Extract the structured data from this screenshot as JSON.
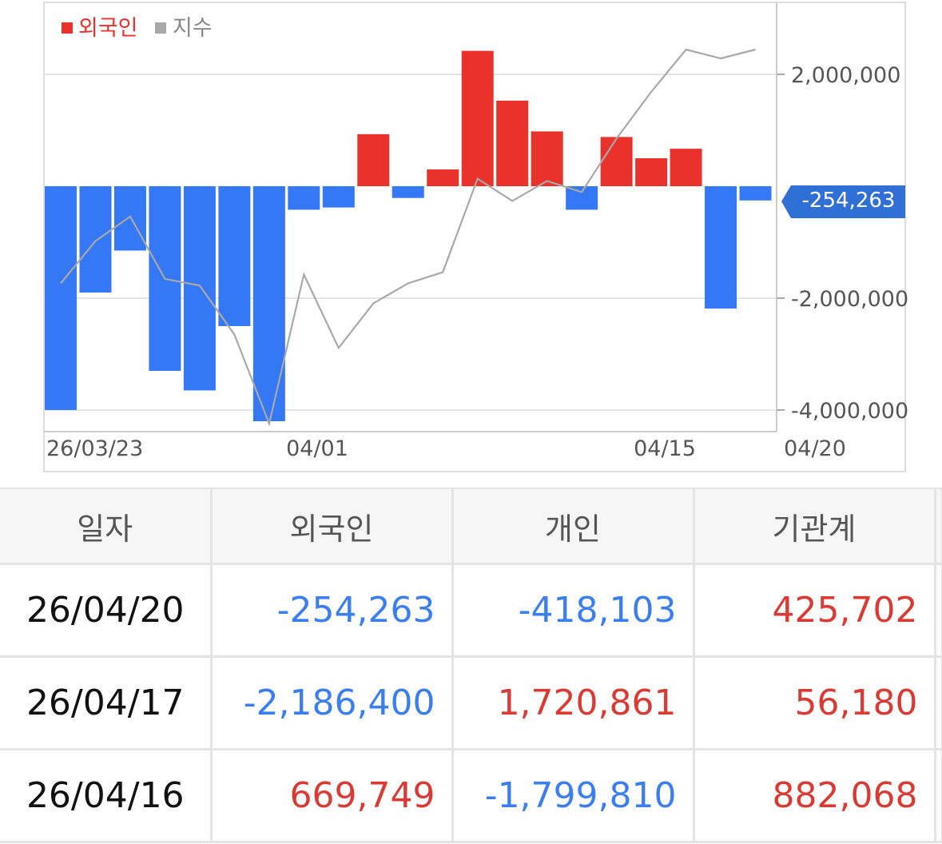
{
  "chart_data": {
    "type": "bar",
    "legend": [
      {
        "label": "외국인",
        "color": "#e8322b"
      },
      {
        "label": "지수",
        "color": "#a8a8a8"
      }
    ],
    "x_labels": [
      "26/03/23",
      "04/01",
      "04/15",
      "04/20"
    ],
    "y_ticks": [
      "2,000,000",
      "-2,000,000",
      "-4,000,000"
    ],
    "y_tick_values": [
      2000000,
      -2000000,
      -4000000
    ],
    "ylim": [
      -4300000,
      3200000
    ],
    "current_value_label": "-254,263",
    "current_value": -254263,
    "series": [
      {
        "name": "외국인",
        "values": [
          -4000000,
          -1900000,
          -1150000,
          -3300000,
          -3650000,
          -2500000,
          -4200000,
          -420000,
          -380000,
          930000,
          -210000,
          300000,
          2420000,
          1530000,
          980000,
          -420000,
          880000,
          500000,
          669749,
          -2186400,
          -254263
        ]
      },
      {
        "name": "지수",
        "values": [
          33,
          52,
          63,
          35,
          32,
          10,
          -30,
          37,
          4,
          24,
          33,
          38,
          80,
          70,
          79,
          74,
          98,
          119,
          138,
          134,
          138
        ]
      }
    ],
    "positive_color": "#e8322b",
    "negative_color": "#3478f6"
  },
  "table": {
    "headers": [
      "일자",
      "외국인",
      "개인",
      "기관계"
    ],
    "rows": [
      {
        "date": "26/04/20",
        "foreign": "-254,263",
        "individual": "-418,103",
        "institution": "425,702"
      },
      {
        "date": "26/04/17",
        "foreign": "-2,186,400",
        "individual": "1,720,861",
        "institution": "56,180"
      },
      {
        "date": "26/04/16",
        "foreign": "669,749",
        "individual": "-1,799,810",
        "institution": "882,068"
      }
    ]
  }
}
